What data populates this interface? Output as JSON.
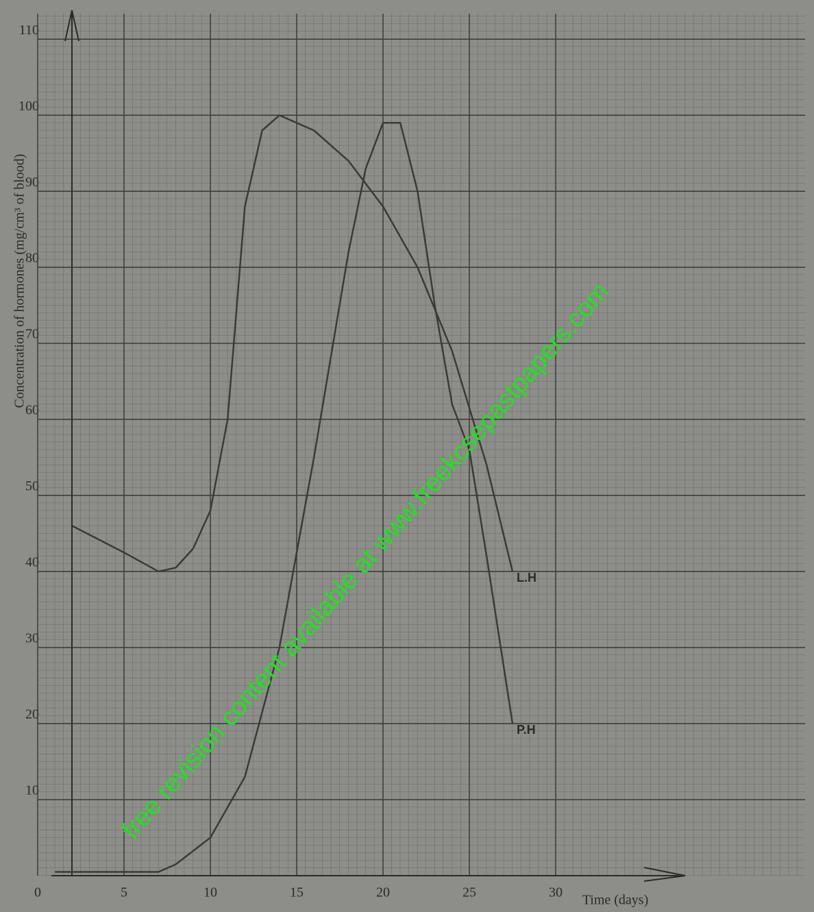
{
  "chart_data": {
    "type": "line",
    "y_label": "Concentration of hormones (mg/cm³ of blood)",
    "x_label": "Time (days)",
    "watermark": "free revision content available at www.freekcsepastpapers.com",
    "series": [
      {
        "name": "L.H",
        "color": "#3a3a38",
        "x": [
          2,
          5,
          7,
          8,
          9,
          10,
          11,
          12,
          13,
          14,
          16,
          18,
          20,
          22,
          24,
          26,
          27.5
        ],
        "values": [
          46,
          42.5,
          40,
          40.5,
          43,
          48,
          60,
          88,
          98,
          100,
          98,
          94,
          88,
          80,
          69,
          54,
          40
        ]
      },
      {
        "name": "P.H",
        "color": "#3a3a38",
        "x": [
          1,
          7,
          8,
          10,
          12,
          14,
          16,
          18,
          19,
          20,
          21,
          22,
          23,
          24,
          25,
          26,
          27.5
        ],
        "values": [
          0.5,
          0.5,
          1.5,
          5,
          13,
          30,
          55,
          82,
          93,
          99,
          99,
          90,
          75,
          62,
          56,
          42,
          20
        ]
      }
    ],
    "xlim": [
      0,
      37.5
    ],
    "xticks": [
      0,
      5,
      10,
      15,
      20,
      25,
      30
    ],
    "ylim": [
      0,
      112
    ],
    "yticks": [
      10,
      20,
      30,
      40,
      50,
      60,
      70,
      80,
      90,
      100,
      110
    ],
    "grid": true
  }
}
